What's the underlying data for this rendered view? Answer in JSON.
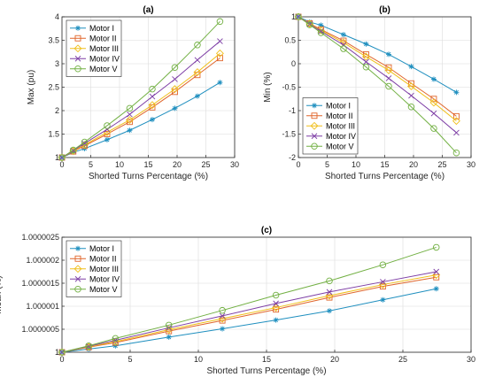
{
  "colors": {
    "motor_i": "#1f8fbf",
    "motor_ii": "#e0652a",
    "motor_iii": "#f0bf1a",
    "motor_iv": "#7e3fa6",
    "motor_v": "#72b043"
  },
  "chart_data": [
    {
      "type": "line",
      "title": "(a)",
      "xlabel": "Shorted Turns Percentage (%)",
      "ylabel": "Max (pu)",
      "xlim": [
        0,
        30
      ],
      "ylim": [
        1,
        4
      ],
      "xticks": [
        0,
        5,
        10,
        15,
        20,
        25,
        30
      ],
      "yticks": [
        1,
        1.5,
        2,
        2.5,
        3,
        3.5,
        4
      ],
      "ytick_labels": [
        "1",
        "1.5",
        "2",
        "2.5",
        "3",
        "3.5",
        "4"
      ],
      "grid": true,
      "legend_position": "top-left",
      "x": [
        0,
        1.96,
        3.92,
        7.84,
        11.76,
        15.69,
        19.61,
        23.53,
        27.45
      ],
      "series": [
        {
          "name": "Motor I",
          "marker": "star",
          "color": "#1f8fbf",
          "values": [
            1,
            1.11,
            1.19,
            1.38,
            1.58,
            1.81,
            2.05,
            2.31,
            2.6
          ]
        },
        {
          "name": "Motor II",
          "marker": "square",
          "color": "#e0652a",
          "values": [
            1,
            1.13,
            1.25,
            1.5,
            1.76,
            2.07,
            2.4,
            2.76,
            3.12
          ]
        },
        {
          "name": "Motor III",
          "marker": "diamond",
          "color": "#f0bf1a",
          "values": [
            1,
            1.14,
            1.27,
            1.54,
            1.8,
            2.12,
            2.46,
            2.82,
            3.22
          ]
        },
        {
          "name": "Motor IV",
          "marker": "x",
          "color": "#7e3fa6",
          "values": [
            1,
            1.15,
            1.3,
            1.6,
            1.92,
            2.3,
            2.67,
            3.08,
            3.48
          ]
        },
        {
          "name": "Motor V",
          "marker": "circle",
          "color": "#72b043",
          "values": [
            1,
            1.16,
            1.33,
            1.68,
            2.05,
            2.46,
            2.92,
            3.4,
            3.9
          ]
        }
      ]
    },
    {
      "type": "line",
      "title": "(b)",
      "xlabel": "Shorted Turns Percentage (%)",
      "ylabel": "Min (%)",
      "xlim": [
        0,
        30
      ],
      "ylim": [
        -2,
        1
      ],
      "xticks": [
        0,
        5,
        10,
        15,
        20,
        25,
        30
      ],
      "yticks": [
        -2,
        -1.5,
        -1,
        -0.5,
        0,
        0.5,
        1
      ],
      "ytick_labels": [
        "-2",
        "-1.5",
        "-1",
        "-0.5",
        "0",
        "0.5",
        "1"
      ],
      "grid": true,
      "legend_position": "bottom-left",
      "x": [
        0,
        1.96,
        3.92,
        7.84,
        11.76,
        15.69,
        19.61,
        23.53,
        27.45
      ],
      "series": [
        {
          "name": "Motor I",
          "marker": "star",
          "color": "#1f8fbf",
          "values": [
            1,
            0.89,
            0.82,
            0.62,
            0.42,
            0.2,
            -0.06,
            -0.33,
            -0.61
          ]
        },
        {
          "name": "Motor II",
          "marker": "square",
          "color": "#e0652a",
          "values": [
            1,
            0.86,
            0.73,
            0.49,
            0.2,
            -0.08,
            -0.42,
            -0.75,
            -1.12
          ]
        },
        {
          "name": "Motor III",
          "marker": "diamond",
          "color": "#f0bf1a",
          "values": [
            1,
            0.85,
            0.71,
            0.45,
            0.15,
            -0.14,
            -0.48,
            -0.83,
            -1.22
          ]
        },
        {
          "name": "Motor IV",
          "marker": "x",
          "color": "#7e3fa6",
          "values": [
            1,
            0.84,
            0.69,
            0.4,
            0.04,
            -0.31,
            -0.68,
            -1.06,
            -1.47
          ]
        },
        {
          "name": "Motor V",
          "marker": "circle",
          "color": "#72b043",
          "values": [
            1,
            0.83,
            0.66,
            0.32,
            -0.07,
            -0.48,
            -0.92,
            -1.38,
            -1.9
          ]
        }
      ]
    },
    {
      "type": "line",
      "title": "(c)",
      "xlabel": "Shorted Turns Percentage (%)",
      "ylabel": "Mean (%)",
      "xlim": [
        0,
        30
      ],
      "ylim": [
        1,
        1.0000025
      ],
      "xticks": [
        0,
        5,
        10,
        15,
        20,
        25,
        30
      ],
      "yticks": [
        1,
        1.0000005,
        1.000001,
        1.0000015,
        1.000002,
        1.0000025
      ],
      "ytick_labels": [
        "1",
        "1.0000005",
        "1.000001",
        "1.0000015",
        "1.000002",
        "1.0000025"
      ],
      "grid": true,
      "legend_position": "top-left",
      "x": [
        0,
        1.96,
        3.92,
        7.84,
        11.76,
        15.69,
        19.61,
        23.53,
        27.45
      ],
      "series": [
        {
          "name": "Motor I",
          "marker": "star",
          "color": "#1f8fbf",
          "values": [
            1,
            1.00000007,
            1.00000014,
            1.00000033,
            1.00000051,
            1.0000007,
            1.0000009,
            1.00000114,
            1.00000138
          ]
        },
        {
          "name": "Motor II",
          "marker": "square",
          "color": "#e0652a",
          "values": [
            1,
            1.00000011,
            1.00000021,
            1.00000046,
            1.00000069,
            1.00000093,
            1.00000119,
            1.00000143,
            1.00000163
          ]
        },
        {
          "name": "Motor III",
          "marker": "diamond",
          "color": "#f0bf1a",
          "values": [
            1,
            1.00000012,
            1.00000023,
            1.00000049,
            1.00000073,
            1.00000097,
            1.00000123,
            1.00000147,
            1.00000168
          ]
        },
        {
          "name": "Motor IV",
          "marker": "x",
          "color": "#7e3fa6",
          "values": [
            1,
            1.00000013,
            1.00000026,
            1.00000053,
            1.00000079,
            1.00000106,
            1.00000131,
            1.00000153,
            1.00000175
          ]
        },
        {
          "name": "Motor V",
          "marker": "circle",
          "color": "#72b043",
          "values": [
            1,
            1.00000014,
            1.0000003,
            1.00000059,
            1.00000091,
            1.00000124,
            1.00000155,
            1.0000019,
            1.00000228
          ]
        }
      ]
    }
  ]
}
